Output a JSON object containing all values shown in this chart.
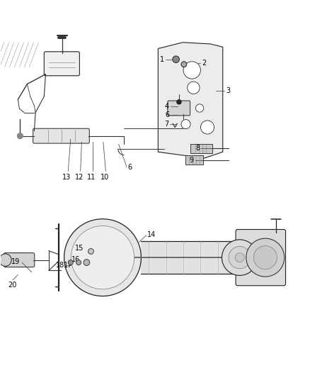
{
  "title": "",
  "background_color": "#ffffff",
  "figsize": [
    4.38,
    5.33
  ],
  "dpi": 100,
  "label_fontsize": 7,
  "label_color": "#000000"
}
